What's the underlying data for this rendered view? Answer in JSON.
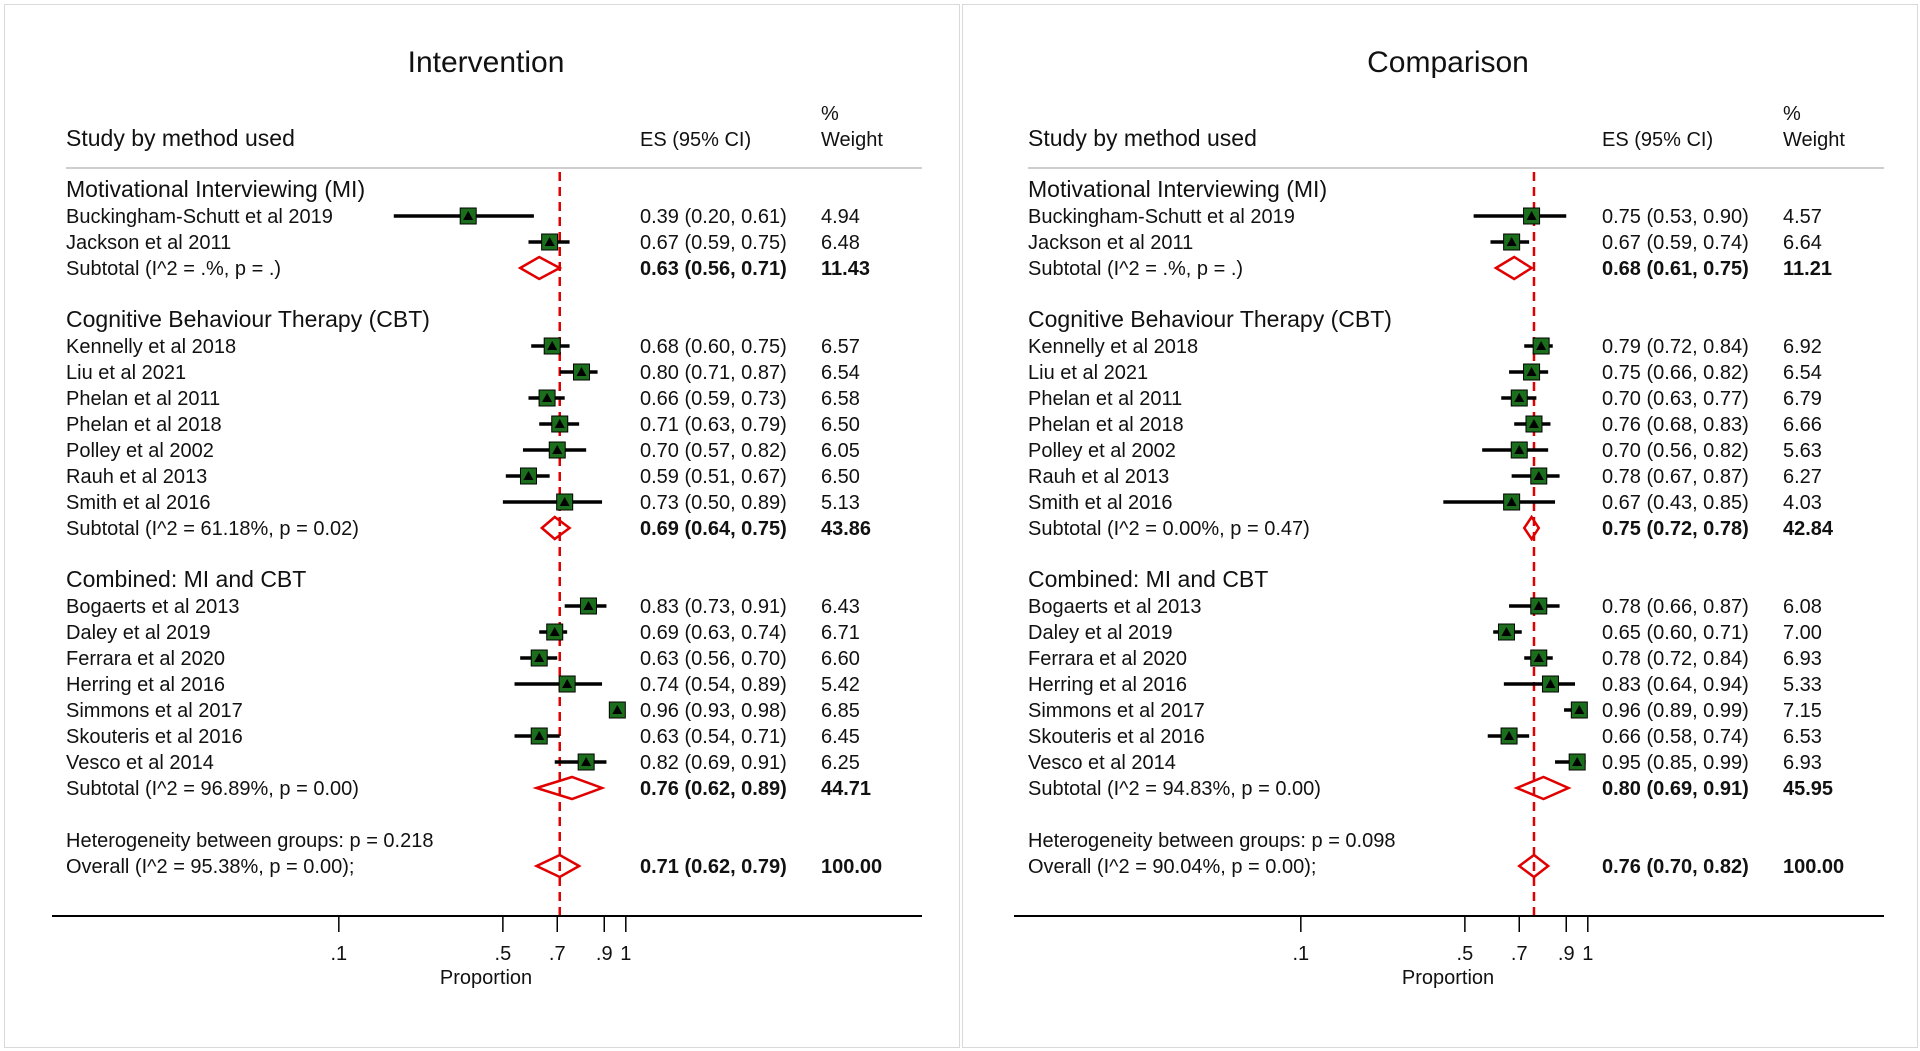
{
  "colors": {
    "marker": "#1b6e1b",
    "diamond": "#e00000",
    "refline": "#e00000",
    "text": "#111111"
  },
  "chart_data": [
    {
      "type": "forest",
      "title": "Intervention",
      "headers": {
        "study": "Study by method used",
        "es": "ES (95% CI)",
        "weight_line1": "%",
        "weight_line2": "Weight"
      },
      "xlabel": "Proportion",
      "xticks": [
        ".1",
        ".5",
        ".7",
        ".9",
        "1"
      ],
      "xtick_values": [
        0.1,
        0.5,
        0.7,
        0.9,
        1.0
      ],
      "reference_line": 0.71,
      "groups": [
        {
          "name": "Motivational Interviewing (MI)",
          "studies": [
            {
              "label": "Buckingham-Schutt et al 2019",
              "es": 0.39,
              "lo": 0.2,
              "hi": 0.61,
              "es_text": "0.39 (0.20, 0.61)",
              "weight": "4.94"
            },
            {
              "label": "Jackson et al 2011",
              "es": 0.67,
              "lo": 0.59,
              "hi": 0.75,
              "es_text": "0.67 (0.59, 0.75)",
              "weight": "6.48"
            }
          ],
          "subtotal": {
            "label": "Subtotal  (I^2 = .%, p = .)",
            "es": 0.63,
            "lo": 0.56,
            "hi": 0.71,
            "es_text": "0.63 (0.56, 0.71)",
            "weight": "11.43"
          }
        },
        {
          "name": "Cognitive Behaviour Therapy (CBT)",
          "studies": [
            {
              "label": "Kennelly et al 2018",
              "es": 0.68,
              "lo": 0.6,
              "hi": 0.75,
              "es_text": "0.68 (0.60, 0.75)",
              "weight": "6.57"
            },
            {
              "label": "Liu et al 2021",
              "es": 0.8,
              "lo": 0.71,
              "hi": 0.87,
              "es_text": "0.80 (0.71, 0.87)",
              "weight": "6.54"
            },
            {
              "label": "Phelan et al 2011",
              "es": 0.66,
              "lo": 0.59,
              "hi": 0.73,
              "es_text": "0.66 (0.59, 0.73)",
              "weight": "6.58"
            },
            {
              "label": "Phelan et al 2018",
              "es": 0.71,
              "lo": 0.63,
              "hi": 0.79,
              "es_text": "0.71 (0.63, 0.79)",
              "weight": "6.50"
            },
            {
              "label": "Polley et al 2002",
              "es": 0.7,
              "lo": 0.57,
              "hi": 0.82,
              "es_text": "0.70 (0.57, 0.82)",
              "weight": "6.05"
            },
            {
              "label": "Rauh et al 2013",
              "es": 0.59,
              "lo": 0.51,
              "hi": 0.67,
              "es_text": "0.59 (0.51, 0.67)",
              "weight": "6.50"
            },
            {
              "label": "Smith et al 2016",
              "es": 0.73,
              "lo": 0.5,
              "hi": 0.89,
              "es_text": "0.73 (0.50, 0.89)",
              "weight": "5.13"
            }
          ],
          "subtotal": {
            "label": "Subtotal  (I^2 = 61.18%, p = 0.02)",
            "es": 0.69,
            "lo": 0.64,
            "hi": 0.75,
            "es_text": "0.69 (0.64, 0.75)",
            "weight": "43.86"
          }
        },
        {
          "name": "Combined: MI and CBT",
          "studies": [
            {
              "label": "Bogaerts et al 2013",
              "es": 0.83,
              "lo": 0.73,
              "hi": 0.91,
              "es_text": "0.83 (0.73, 0.91)",
              "weight": "6.43"
            },
            {
              "label": "Daley et al 2019",
              "es": 0.69,
              "lo": 0.63,
              "hi": 0.74,
              "es_text": "0.69 (0.63, 0.74)",
              "weight": "6.71"
            },
            {
              "label": "Ferrara et al 2020",
              "es": 0.63,
              "lo": 0.56,
              "hi": 0.7,
              "es_text": "0.63 (0.56, 0.70)",
              "weight": "6.60"
            },
            {
              "label": "Herring et al 2016",
              "es": 0.74,
              "lo": 0.54,
              "hi": 0.89,
              "es_text": "0.74 (0.54, 0.89)",
              "weight": "5.42"
            },
            {
              "label": "Simmons et al 2017",
              "es": 0.96,
              "lo": 0.93,
              "hi": 0.98,
              "es_text": "0.96 (0.93, 0.98)",
              "weight": "6.85"
            },
            {
              "label": "Skouteris et al 2016",
              "es": 0.63,
              "lo": 0.54,
              "hi": 0.71,
              "es_text": "0.63 (0.54, 0.71)",
              "weight": "6.45"
            },
            {
              "label": "Vesco et al 2014",
              "es": 0.82,
              "lo": 0.69,
              "hi": 0.91,
              "es_text": "0.82 (0.69, 0.91)",
              "weight": "6.25"
            }
          ],
          "subtotal": {
            "label": "Subtotal  (I^2 = 96.89%, p = 0.00)",
            "es": 0.76,
            "lo": 0.62,
            "hi": 0.89,
            "es_text": "0.76 (0.62, 0.89)",
            "weight": "44.71"
          }
        }
      ],
      "heterogeneity": "Heterogeneity between groups: p = 0.218",
      "overall": {
        "label": "Overall  (I^2 = 95.38%, p = 0.00);",
        "es": 0.71,
        "lo": 0.62,
        "hi": 0.79,
        "es_text": "0.71 (0.62, 0.79)",
        "weight": "100.00"
      }
    },
    {
      "type": "forest",
      "title": "Comparison",
      "headers": {
        "study": "Study by method used",
        "es": "ES (95% CI)",
        "weight_line1": "%",
        "weight_line2": "Weight"
      },
      "xlabel": "Proportion",
      "xticks": [
        ".1",
        ".5",
        ".7",
        ".9",
        "1"
      ],
      "xtick_values": [
        0.1,
        0.5,
        0.7,
        0.9,
        1.0
      ],
      "reference_line": 0.76,
      "groups": [
        {
          "name": "Motivational Interviewing (MI)",
          "studies": [
            {
              "label": "Buckingham-Schutt et al 2019",
              "es": 0.75,
              "lo": 0.53,
              "hi": 0.9,
              "es_text": "0.75 (0.53, 0.90)",
              "weight": "4.57"
            },
            {
              "label": "Jackson et al 2011",
              "es": 0.67,
              "lo": 0.59,
              "hi": 0.74,
              "es_text": "0.67 (0.59, 0.74)",
              "weight": "6.64"
            }
          ],
          "subtotal": {
            "label": "Subtotal  (I^2 = .%, p = .)",
            "es": 0.68,
            "lo": 0.61,
            "hi": 0.75,
            "es_text": "0.68 (0.61, 0.75)",
            "weight": "11.21"
          }
        },
        {
          "name": "Cognitive Behaviour Therapy (CBT)",
          "studies": [
            {
              "label": "Kennelly et al 2018",
              "es": 0.79,
              "lo": 0.72,
              "hi": 0.84,
              "es_text": "0.79 (0.72, 0.84)",
              "weight": "6.92"
            },
            {
              "label": "Liu et al 2021",
              "es": 0.75,
              "lo": 0.66,
              "hi": 0.82,
              "es_text": "0.75 (0.66, 0.82)",
              "weight": "6.54"
            },
            {
              "label": "Phelan et al 2011",
              "es": 0.7,
              "lo": 0.63,
              "hi": 0.77,
              "es_text": "0.70 (0.63, 0.77)",
              "weight": "6.79"
            },
            {
              "label": "Phelan et al 2018",
              "es": 0.76,
              "lo": 0.68,
              "hi": 0.83,
              "es_text": "0.76 (0.68, 0.83)",
              "weight": "6.66"
            },
            {
              "label": "Polley et al 2002",
              "es": 0.7,
              "lo": 0.56,
              "hi": 0.82,
              "es_text": "0.70 (0.56, 0.82)",
              "weight": "5.63"
            },
            {
              "label": "Rauh et al 2013",
              "es": 0.78,
              "lo": 0.67,
              "hi": 0.87,
              "es_text": "0.78 (0.67, 0.87)",
              "weight": "6.27"
            },
            {
              "label": "Smith et al 2016",
              "es": 0.67,
              "lo": 0.43,
              "hi": 0.85,
              "es_text": "0.67 (0.43, 0.85)",
              "weight": "4.03"
            }
          ],
          "subtotal": {
            "label": "Subtotal  (I^2 = 0.00%, p = 0.47)",
            "es": 0.75,
            "lo": 0.72,
            "hi": 0.78,
            "es_text": "0.75 (0.72, 0.78)",
            "weight": "42.84"
          }
        },
        {
          "name": "Combined: MI and CBT",
          "studies": [
            {
              "label": "Bogaerts et al 2013",
              "es": 0.78,
              "lo": 0.66,
              "hi": 0.87,
              "es_text": "0.78 (0.66, 0.87)",
              "weight": "6.08"
            },
            {
              "label": "Daley et al 2019",
              "es": 0.65,
              "lo": 0.6,
              "hi": 0.71,
              "es_text": "0.65 (0.60, 0.71)",
              "weight": "7.00"
            },
            {
              "label": "Ferrara et al 2020",
              "es": 0.78,
              "lo": 0.72,
              "hi": 0.84,
              "es_text": "0.78 (0.72, 0.84)",
              "weight": "6.93"
            },
            {
              "label": "Herring et al 2016",
              "es": 0.83,
              "lo": 0.64,
              "hi": 0.94,
              "es_text": "0.83 (0.64, 0.94)",
              "weight": "5.33"
            },
            {
              "label": "Simmons et al 2017",
              "es": 0.96,
              "lo": 0.89,
              "hi": 0.99,
              "es_text": "0.96 (0.89, 0.99)",
              "weight": "7.15"
            },
            {
              "label": "Skouteris et al 2016",
              "es": 0.66,
              "lo": 0.58,
              "hi": 0.74,
              "es_text": "0.66 (0.58, 0.74)",
              "weight": "6.53"
            },
            {
              "label": "Vesco et al 2014",
              "es": 0.95,
              "lo": 0.85,
              "hi": 0.99,
              "es_text": "0.95 (0.85, 0.99)",
              "weight": "6.93"
            }
          ],
          "subtotal": {
            "label": "Subtotal  (I^2 = 94.83%, p = 0.00)",
            "es": 0.8,
            "lo": 0.69,
            "hi": 0.91,
            "es_text": "0.80 (0.69, 0.91)",
            "weight": "45.95"
          }
        }
      ],
      "heterogeneity": "Heterogeneity between groups: p = 0.098",
      "overall": {
        "label": "Overall  (I^2 = 90.04%, p = 0.00);",
        "es": 0.76,
        "lo": 0.7,
        "hi": 0.82,
        "es_text": "0.76 (0.70, 0.82)",
        "weight": "100.00"
      }
    }
  ]
}
